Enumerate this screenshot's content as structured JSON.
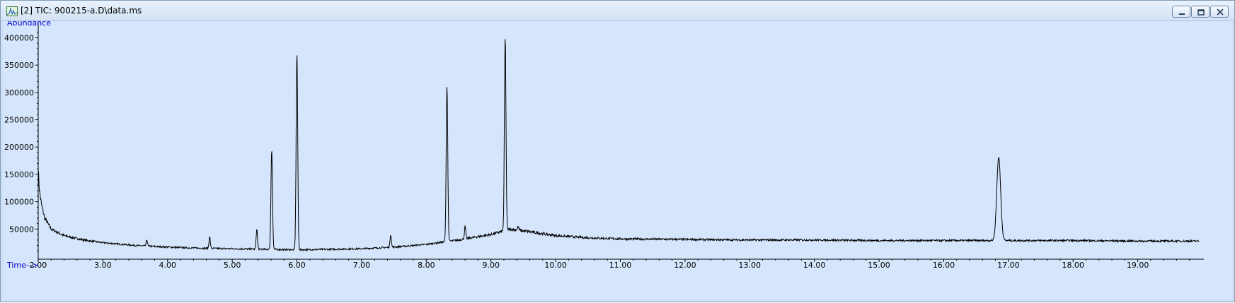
{
  "window": {
    "title": "[2] TIC: 900215-a.D\\data.ms"
  },
  "icons": {
    "app": "chromatogram-app-icon",
    "minimize": "minimize-icon",
    "restore": "restore-icon",
    "close": "close-icon"
  },
  "colors": {
    "plot_bg": "#d5e5fb",
    "trace": "#000000",
    "axis_label": "#0000cc"
  },
  "chart_data": {
    "type": "line",
    "ylabel": "Abundance",
    "xlabel": "Time-->",
    "xlim": [
      2.0,
      20.0
    ],
    "ylim": [
      0,
      420000
    ],
    "x_ticks": [
      "2.00",
      "3.00",
      "4.00",
      "5.00",
      "6.00",
      "7.00",
      "8.00",
      "9.00",
      "10.00",
      "11.00",
      "12.00",
      "13.00",
      "14.00",
      "15.00",
      "16.00",
      "17.00",
      "18.00",
      "19.00"
    ],
    "y_ticks": [
      "50000",
      "100000",
      "150000",
      "200000",
      "250000",
      "300000",
      "350000",
      "400000"
    ],
    "baseline": [
      [
        2.0,
        160000
      ],
      [
        2.02,
        120000
      ],
      [
        2.05,
        95000
      ],
      [
        2.1,
        70000
      ],
      [
        2.2,
        50000
      ],
      [
        2.4,
        38000
      ],
      [
        2.7,
        30000
      ],
      [
        3.0,
        25000
      ],
      [
        3.5,
        20000
      ],
      [
        4.0,
        17000
      ],
      [
        4.5,
        15000
      ],
      [
        5.0,
        14000
      ],
      [
        5.5,
        13000
      ],
      [
        6.0,
        12000
      ],
      [
        6.5,
        13000
      ],
      [
        7.0,
        14000
      ],
      [
        7.5,
        17000
      ],
      [
        8.0,
        22000
      ],
      [
        8.5,
        30000
      ],
      [
        9.0,
        40000
      ],
      [
        9.3,
        50000
      ],
      [
        9.6,
        45000
      ],
      [
        10.0,
        38000
      ],
      [
        10.5,
        34000
      ],
      [
        11.0,
        32000
      ],
      [
        12.0,
        31000
      ],
      [
        13.0,
        30000
      ],
      [
        14.0,
        30000
      ],
      [
        15.0,
        29000
      ],
      [
        16.0,
        29000
      ],
      [
        17.0,
        29000
      ],
      [
        18.0,
        29000
      ],
      [
        19.0,
        28000
      ],
      [
        19.95,
        28000
      ]
    ],
    "peaks": [
      {
        "x": 3.68,
        "y": 30000
      },
      {
        "x": 4.65,
        "y": 36000
      },
      {
        "x": 5.38,
        "y": 51000
      },
      {
        "x": 5.61,
        "y": 196000
      },
      {
        "x": 6.0,
        "y": 373000
      },
      {
        "x": 7.45,
        "y": 40000
      },
      {
        "x": 8.32,
        "y": 314000
      },
      {
        "x": 8.6,
        "y": 55000
      },
      {
        "x": 9.22,
        "y": 402000
      },
      {
        "x": 9.42,
        "y": 54000
      },
      {
        "x": 16.85,
        "y": 182000
      }
    ]
  }
}
